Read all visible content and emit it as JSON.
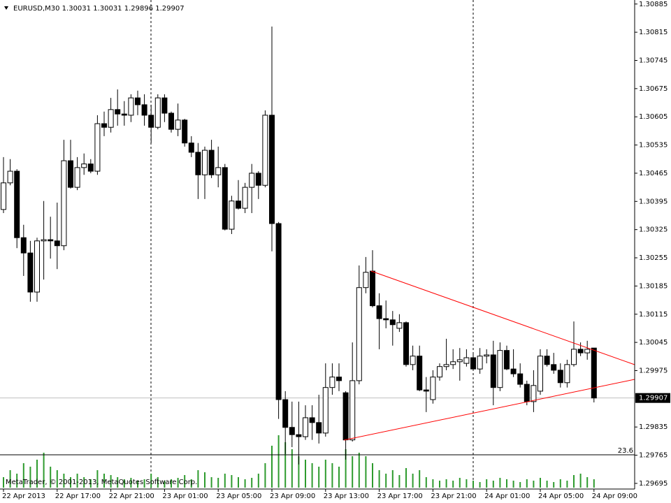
{
  "chart_data": {
    "type": "candlestick",
    "header": "EURUSD,M30  1.30031 1.30031 1.29896 1.29907",
    "copyright": "MetaTrader, © 2001-2013, MetaQuotes Software Corp.",
    "categories": [
      "22 Apr 2013",
      null,
      null,
      null,
      null,
      null,
      null,
      null,
      "22 Apr 17:00",
      null,
      null,
      null,
      null,
      null,
      null,
      null,
      "22 Apr 21:00",
      null,
      null,
      null,
      null,
      null,
      null,
      null,
      "23 Apr 01:00",
      null,
      null,
      null,
      null,
      null,
      null,
      null,
      "23 Apr 05:00",
      null,
      null,
      null,
      null,
      null,
      null,
      null,
      "23 Apr 09:00",
      null,
      null,
      null,
      null,
      null,
      null,
      null,
      "23 Apr 13:00",
      null,
      null,
      null,
      null,
      null,
      null,
      null,
      "23 Apr 17:00",
      null,
      null,
      null,
      null,
      null,
      null,
      null,
      "23 Apr 21:00",
      null,
      null,
      null,
      null,
      null,
      null,
      null,
      "24 Apr 01:00",
      null,
      null,
      null,
      null,
      null,
      null,
      null,
      "24 Apr 05:00",
      null,
      null,
      null,
      null,
      null,
      null,
      null,
      "24 Apr 09:00"
    ],
    "open": [
      1.30375,
      1.30441,
      1.3047,
      1.30305,
      1.30267,
      1.3017,
      1.30297,
      1.303,
      1.30297,
      1.30285,
      1.30496,
      1.3043,
      1.30479,
      1.30488,
      1.3047,
      1.30588,
      1.30579,
      1.30623,
      1.30612,
      1.30609,
      1.30652,
      1.30635,
      1.30609,
      1.30579,
      1.30652,
      1.30614,
      1.30574,
      1.30597,
      1.3054,
      1.30517,
      1.30461,
      1.30522,
      1.30461,
      1.30479,
      1.30326,
      1.30396,
      1.30378,
      1.3043,
      1.30465,
      1.30435,
      1.30609,
      1.3034,
      1.29903,
      1.29834,
      1.29816,
      1.29811,
      1.29858,
      1.29846,
      1.2982,
      1.29933,
      1.29959,
      1.2992,
      1.29803,
      1.2995,
      1.30181,
      1.30222,
      1.30136,
      1.30104,
      1.30101,
      1.3008,
      1.30094,
      1.2999,
      1.30011,
      1.29927,
      1.29903,
      1.29959,
      1.29985,
      1.2999,
      1.29997,
      1.29993,
      1.30007,
      1.29979,
      1.30011,
      1.30014,
      1.29933,
      1.30025,
      1.29979,
      1.29967,
      1.29941,
      1.29898,
      1.29924,
      1.30011,
      1.2999,
      1.29976,
      1.29945,
      1.2999,
      1.30028,
      1.30019,
      1.30031
    ],
    "high": [
      1.30505,
      1.305,
      1.30475,
      1.30337,
      1.30297,
      1.30305,
      1.30396,
      1.30357,
      1.30392,
      1.30548,
      1.30548,
      1.30505,
      1.30514,
      1.305,
      1.30609,
      1.30618,
      1.30652,
      1.30673,
      1.30644,
      1.30661,
      1.3067,
      1.30661,
      1.30635,
      1.30661,
      1.30661,
      1.30618,
      1.30638,
      1.306,
      1.30557,
      1.3054,
      1.30531,
      1.30548,
      1.30531,
      1.30488,
      1.30409,
      1.30448,
      1.30441,
      1.30488,
      1.3047,
      1.30621,
      1.30829,
      1.30344,
      1.29924,
      1.29898,
      1.29898,
      1.29889,
      1.29889,
      1.29915,
      1.29993,
      1.29993,
      1.29993,
      1.29924,
      1.30045,
      1.30236,
      1.30257,
      1.30274,
      1.30167,
      1.30149,
      1.30123,
      1.30115,
      1.30097,
      1.30037,
      1.30037,
      1.29959,
      1.29976,
      1.29993,
      1.30054,
      1.30028,
      1.30031,
      1.30028,
      1.30019,
      1.30031,
      1.30028,
      1.30049,
      1.30045,
      1.30037,
      1.30028,
      1.29993,
      1.2995,
      1.29976,
      1.30028,
      1.30028,
      1.30019,
      1.29993,
      1.30002,
      1.30097,
      1.30045,
      1.30049,
      1.30031
    ],
    "low": [
      1.30366,
      1.30435,
      1.30279,
      1.3021,
      1.30146,
      1.30146,
      1.30201,
      1.30253,
      1.30227,
      1.30274,
      1.30427,
      1.30423,
      1.30461,
      1.30465,
      1.30461,
      1.30557,
      1.30566,
      1.30583,
      1.30583,
      1.30592,
      1.30609,
      1.30583,
      1.3054,
      1.30574,
      1.30592,
      1.30566,
      1.30557,
      1.30531,
      1.30505,
      1.30401,
      1.30401,
      1.30453,
      1.3043,
      1.30323,
      1.30314,
      1.30375,
      1.30366,
      1.30366,
      1.30401,
      1.3043,
      1.30271,
      1.29855,
      1.29768,
      1.29785,
      1.29742,
      1.29803,
      1.29803,
      1.29794,
      1.29811,
      1.29915,
      1.29924,
      1.29754,
      1.29799,
      1.29941,
      1.30167,
      1.30132,
      1.30028,
      1.3008,
      1.30037,
      1.30071,
      1.29985,
      1.29976,
      1.29924,
      1.29872,
      1.29893,
      1.2995,
      1.29976,
      1.29979,
      1.2995,
      1.29985,
      1.29976,
      1.29967,
      1.29993,
      1.29889,
      1.29924,
      1.29976,
      1.29959,
      1.29933,
      1.29889,
      1.29872,
      1.29915,
      1.29985,
      1.29967,
      1.29933,
      1.29933,
      1.29985,
      1.30011,
      1.30002,
      1.29896
    ],
    "close": [
      1.30441,
      1.3047,
      1.30305,
      1.30267,
      1.3017,
      1.30297,
      1.303,
      1.30297,
      1.30285,
      1.30496,
      1.3043,
      1.30479,
      1.30488,
      1.3047,
      1.30588,
      1.30579,
      1.30623,
      1.30612,
      1.30609,
      1.30652,
      1.30635,
      1.30609,
      1.30579,
      1.30652,
      1.30614,
      1.30574,
      1.30597,
      1.3054,
      1.30517,
      1.30461,
      1.30522,
      1.30461,
      1.30479,
      1.30326,
      1.30396,
      1.30378,
      1.3043,
      1.30465,
      1.30435,
      1.30609,
      1.3034,
      1.29903,
      1.29834,
      1.29816,
      1.29811,
      1.29858,
      1.29846,
      1.2982,
      1.29933,
      1.29959,
      1.2995,
      1.29803,
      1.2995,
      1.30181,
      1.30219,
      1.30136,
      1.30104,
      1.30101,
      1.30089,
      1.30094,
      1.2999,
      1.30011,
      1.29927,
      1.29924,
      1.29959,
      1.29985,
      1.2999,
      1.29997,
      1.30002,
      1.30007,
      1.29979,
      1.30011,
      1.30014,
      1.29933,
      1.30025,
      1.29979,
      1.29967,
      1.29941,
      1.29898,
      1.29938,
      1.30011,
      1.2999,
      1.29976,
      1.29945,
      1.2999,
      1.30028,
      1.30019,
      1.30028,
      1.29907
    ],
    "volume": [
      150,
      250,
      200,
      350,
      300,
      400,
      500,
      300,
      250,
      200,
      150,
      200,
      150,
      120,
      250,
      200,
      180,
      150,
      120,
      140,
      100,
      120,
      200,
      150,
      100,
      120,
      140,
      180,
      120,
      250,
      220,
      150,
      140,
      200,
      180,
      150,
      120,
      140,
      200,
      350,
      600,
      750,
      650,
      550,
      450,
      400,
      350,
      300,
      400,
      350,
      300,
      550,
      450,
      500,
      450,
      350,
      250,
      200,
      250,
      180,
      280,
      200,
      250,
      150,
      120,
      100,
      120,
      100,
      140,
      120,
      100,
      80,
      120,
      100,
      140,
      120,
      100,
      80,
      120,
      100,
      140,
      100,
      80,
      120,
      100,
      180,
      200,
      150,
      120
    ],
    "ylim": [
      1.29681,
      1.30895
    ],
    "yticks": [
      1.30885,
      1.30815,
      1.30745,
      1.30675,
      1.30605,
      1.30535,
      1.30465,
      1.30395,
      1.30325,
      1.30255,
      1.30185,
      1.30115,
      1.30045,
      1.29975,
      1.29835,
      1.29765,
      1.29695
    ],
    "current_price": 1.29907,
    "fib_level": {
      "value": 1.29766,
      "label": "23.6"
    },
    "bull_color": "#ffffff",
    "bear_color": "#000000",
    "volume_color": "#2e9b2e",
    "trendline_color": "#ff0000"
  }
}
